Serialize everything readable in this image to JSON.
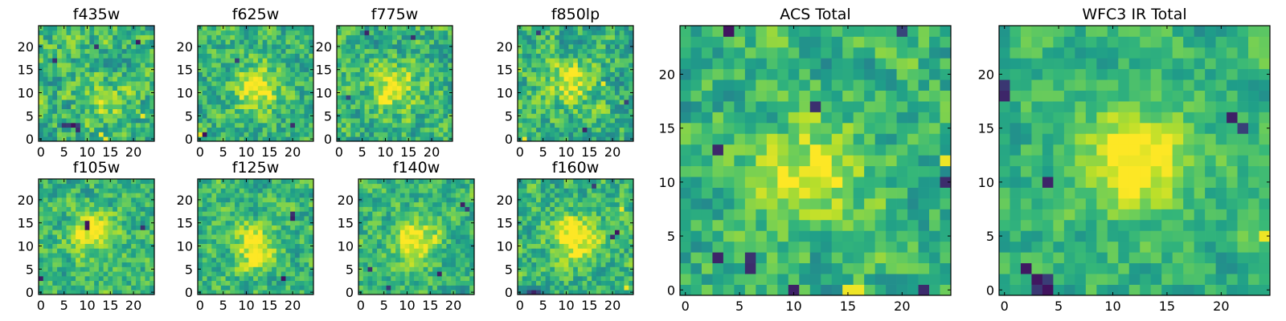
{
  "figure": {
    "colormap": [
      "#440154",
      "#31688e",
      "#26828e",
      "#1f9e89",
      "#35b779",
      "#6ece58",
      "#b5de2b",
      "#fde725"
    ]
  },
  "chart_data": [
    {
      "type": "heatmap",
      "title": "f435w",
      "grid_size": 25,
      "xlim": [
        0,
        24
      ],
      "ylim": [
        0,
        24
      ],
      "xticks": [
        "0",
        "5",
        "10",
        "15",
        "20"
      ],
      "yticks": [
        "0",
        "5",
        "10",
        "15",
        "20"
      ],
      "peak": [
        14,
        8
      ],
      "peak_strength": 0.25,
      "noise": 0.42,
      "seed": 11,
      "cold_pixels": [
        [
          5,
          3
        ],
        [
          6,
          3
        ],
        [
          7,
          3
        ],
        [
          8,
          3
        ],
        [
          8,
          2
        ],
        [
          21,
          21
        ],
        [
          3,
          17
        ],
        [
          12,
          20
        ]
      ],
      "hot_pixels": [
        [
          13,
          1
        ],
        [
          14,
          0
        ],
        [
          22,
          5
        ]
      ]
    },
    {
      "type": "heatmap",
      "title": "f625w",
      "grid_size": 25,
      "xlim": [
        0,
        24
      ],
      "ylim": [
        0,
        24
      ],
      "xticks": [
        "0",
        "5",
        "10",
        "15",
        "20"
      ],
      "yticks": [
        "0",
        "5",
        "10",
        "15",
        "20"
      ],
      "peak": [
        12,
        11
      ],
      "peak_strength": 0.5,
      "noise": 0.38,
      "seed": 23,
      "cold_pixels": [
        [
          1,
          1
        ],
        [
          20,
          3
        ],
        [
          8,
          17
        ]
      ],
      "hot_pixels": [
        [
          0,
          1
        ],
        [
          12,
          12
        ],
        [
          11,
          11
        ]
      ]
    },
    {
      "type": "heatmap",
      "title": "f775w",
      "grid_size": 25,
      "xlim": [
        0,
        24
      ],
      "ylim": [
        0,
        24
      ],
      "xticks": [
        "0",
        "5",
        "10",
        "15",
        "20"
      ],
      "yticks": [
        "0",
        "5",
        "10",
        "15",
        "20"
      ],
      "peak": [
        12,
        11
      ],
      "peak_strength": 0.45,
      "noise": 0.4,
      "seed": 37,
      "cold_pixels": [
        [
          6,
          23
        ],
        [
          16,
          22
        ],
        [
          2,
          9
        ]
      ],
      "hot_pixels": [
        [
          12,
          11
        ],
        [
          11,
          12
        ]
      ]
    },
    {
      "type": "heatmap",
      "title": "f850lp",
      "grid_size": 25,
      "xlim": [
        0,
        24
      ],
      "ylim": [
        0,
        24
      ],
      "xticks": [
        "0",
        "5",
        "10",
        "15",
        "20"
      ],
      "yticks": [
        "0",
        "5",
        "10",
        "15",
        "20"
      ],
      "peak": [
        11,
        12
      ],
      "peak_strength": 0.4,
      "noise": 0.42,
      "seed": 53,
      "cold_pixels": [
        [
          4,
          23
        ],
        [
          23,
          8
        ],
        [
          14,
          2
        ]
      ],
      "hot_pixels": [
        [
          1,
          0
        ],
        [
          18,
          12
        ]
      ]
    },
    {
      "type": "heatmap",
      "title": "f105w",
      "grid_size": 25,
      "xlim": [
        0,
        24
      ],
      "ylim": [
        0,
        24
      ],
      "xticks": [
        "0",
        "5",
        "10",
        "15",
        "20"
      ],
      "yticks": [
        "0",
        "5",
        "10",
        "15",
        "20"
      ],
      "peak": [
        11,
        13
      ],
      "peak_strength": 0.5,
      "noise": 0.35,
      "seed": 61,
      "cold_pixels": [
        [
          10,
          14
        ],
        [
          10,
          15
        ],
        [
          22,
          14
        ],
        [
          0,
          3
        ]
      ],
      "hot_pixels": [
        [
          11,
          12
        ],
        [
          12,
          13
        ]
      ]
    },
    {
      "type": "heatmap",
      "title": "f125w",
      "grid_size": 25,
      "xlim": [
        0,
        24
      ],
      "ylim": [
        0,
        24
      ],
      "xticks": [
        "0",
        "5",
        "10",
        "15",
        "20"
      ],
      "yticks": [
        "0",
        "5",
        "10",
        "15",
        "20"
      ],
      "peak": [
        12,
        10
      ],
      "peak_strength": 0.5,
      "noise": 0.35,
      "seed": 71,
      "cold_pixels": [
        [
          20,
          16
        ],
        [
          20,
          17
        ],
        [
          18,
          3
        ]
      ],
      "hot_pixels": [
        [
          12,
          10
        ],
        [
          13,
          9
        ]
      ]
    },
    {
      "type": "heatmap",
      "title": "f140w",
      "grid_size": 25,
      "xlim": [
        0,
        24
      ],
      "ylim": [
        0,
        24
      ],
      "xticks": [
        "0",
        "5",
        "10",
        "15",
        "20"
      ],
      "yticks": [
        "0",
        "5",
        "10",
        "15",
        "20"
      ],
      "peak": [
        12,
        11
      ],
      "peak_strength": 0.55,
      "noise": 0.33,
      "seed": 83,
      "cold_pixels": [
        [
          2,
          5
        ],
        [
          22,
          19
        ],
        [
          23,
          18
        ],
        [
          17,
          4
        ],
        [
          6,
          1
        ]
      ],
      "hot_pixels": [
        [
          12,
          11
        ],
        [
          13,
          12
        ]
      ]
    },
    {
      "type": "heatmap",
      "title": "f160w",
      "grid_size": 25,
      "xlim": [
        0,
        24
      ],
      "ylim": [
        0,
        24
      ],
      "xticks": [
        "0",
        "5",
        "10",
        "15",
        "20"
      ],
      "yticks": [
        "0",
        "5",
        "10",
        "15",
        "20"
      ],
      "peak": [
        12,
        12
      ],
      "peak_strength": 0.55,
      "noise": 0.35,
      "seed": 97,
      "cold_pixels": [
        [
          2,
          0
        ],
        [
          3,
          0
        ],
        [
          4,
          0
        ],
        [
          20,
          12
        ],
        [
          21,
          13
        ],
        [
          16,
          23
        ]
      ],
      "hot_pixels": [
        [
          22,
          18
        ],
        [
          23,
          1
        ]
      ]
    },
    {
      "type": "heatmap",
      "title": "ACS Total",
      "grid_size": 25,
      "xlim": [
        0,
        24
      ],
      "ylim": [
        0,
        24
      ],
      "xticks": [
        "0",
        "5",
        "10",
        "15",
        "20"
      ],
      "yticks": [
        "0",
        "5",
        "10",
        "15",
        "20"
      ],
      "peak": [
        12,
        11
      ],
      "peak_strength": 0.45,
      "noise": 0.35,
      "seed": 101,
      "cold_pixels": [
        [
          4,
          24
        ],
        [
          20,
          24
        ],
        [
          12,
          17
        ],
        [
          3,
          13
        ],
        [
          24,
          10
        ],
        [
          3,
          3
        ],
        [
          6,
          3
        ],
        [
          6,
          2
        ],
        [
          10,
          0
        ],
        [
          22,
          0
        ]
      ],
      "hot_pixels": [
        [
          12,
          11
        ],
        [
          11,
          11
        ],
        [
          15,
          0
        ],
        [
          16,
          0
        ],
        [
          24,
          12
        ]
      ]
    },
    {
      "type": "heatmap",
      "title": "WFC3 IR Total",
      "grid_size": 25,
      "xlim": [
        0,
        24
      ],
      "ylim": [
        0,
        24
      ],
      "xticks": [
        "0",
        "5",
        "10",
        "15",
        "20"
      ],
      "yticks": [
        "0",
        "5",
        "10",
        "15",
        "20"
      ],
      "peak": [
        12,
        12
      ],
      "peak_strength": 0.55,
      "noise": 0.25,
      "seed": 113,
      "cold_pixels": [
        [
          0,
          18
        ],
        [
          0,
          19
        ],
        [
          4,
          10
        ],
        [
          2,
          2
        ],
        [
          3,
          0
        ],
        [
          4,
          0
        ],
        [
          3,
          1
        ],
        [
          4,
          1
        ],
        [
          21,
          16
        ],
        [
          22,
          15
        ]
      ],
      "hot_pixels": [
        [
          11,
          12
        ],
        [
          12,
          12
        ],
        [
          13,
          12
        ],
        [
          24,
          5
        ]
      ]
    }
  ]
}
